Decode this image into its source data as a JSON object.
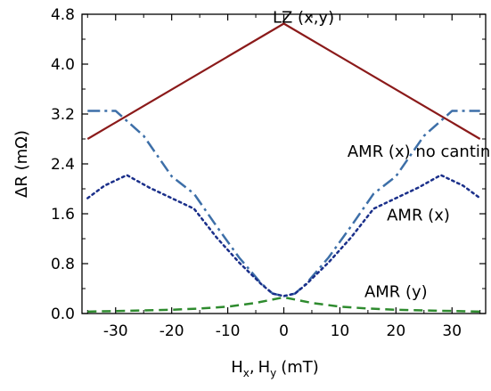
{
  "chart_data": {
    "type": "line",
    "title": "",
    "xlabel": "H_x, H_y (mT)",
    "xlabel_parts": {
      "h": "H",
      "x_sub": "x",
      "comma": ",",
      "y_sub": "y",
      "unit": "(mT)"
    },
    "ylabel": "ΔR (mΩ)",
    "xlim": [
      -36,
      36
    ],
    "ylim": [
      0,
      4.8
    ],
    "x_ticks": [
      -30,
      -20,
      -10,
      0,
      10,
      20,
      30
    ],
    "x_tick_labels": [
      "-30",
      "-20",
      "-10",
      "0",
      "10",
      "20",
      "30"
    ],
    "y_ticks": [
      0,
      0.8,
      1.6,
      2.4,
      3.2,
      4.0,
      4.8
    ],
    "y_tick_labels": [
      "0.0",
      "0.8",
      "1.6",
      "2.4",
      "3.2",
      "4.0",
      "4.8"
    ],
    "grid": false,
    "legend": "none (series labeled directly on plot)",
    "series": [
      {
        "name": "LZ (x,y)",
        "color": "#8b1a1a",
        "style": "solid",
        "x": [
          -35,
          0,
          35
        ],
        "y": [
          2.8,
          4.65,
          2.8
        ]
      },
      {
        "name": "AMR (x) no canting",
        "color": "#3d6fa8",
        "style": "dash-dot",
        "x": [
          -35,
          -30,
          -25,
          -20,
          -16,
          -12,
          -8,
          -4,
          -2,
          0,
          2,
          4,
          8,
          12,
          16,
          20,
          25,
          30,
          35
        ],
        "y": [
          3.25,
          3.25,
          2.85,
          2.2,
          1.92,
          1.4,
          0.9,
          0.48,
          0.32,
          0.28,
          0.32,
          0.48,
          0.9,
          1.4,
          1.92,
          2.2,
          2.85,
          3.25,
          3.25
        ]
      },
      {
        "name": "AMR (x)",
        "color": "#1a2f8a",
        "style": "dotted",
        "x": [
          -35,
          -32,
          -28,
          -24,
          -20,
          -16,
          -12,
          -8,
          -4,
          -2,
          0,
          2,
          4,
          8,
          12,
          16,
          20,
          24,
          28,
          32,
          35
        ],
        "y": [
          1.85,
          2.05,
          2.22,
          2.02,
          1.85,
          1.68,
          1.22,
          0.82,
          0.47,
          0.32,
          0.28,
          0.32,
          0.47,
          0.82,
          1.22,
          1.68,
          1.85,
          2.02,
          2.22,
          2.05,
          1.85
        ]
      },
      {
        "name": "AMR (y)",
        "color": "#2e8b2e",
        "style": "dashed",
        "x": [
          -35,
          -30,
          -25,
          -20,
          -15,
          -10,
          -5,
          0,
          5,
          10,
          15,
          20,
          25,
          30,
          35
        ],
        "y": [
          0.03,
          0.04,
          0.05,
          0.06,
          0.08,
          0.11,
          0.17,
          0.26,
          0.17,
          0.11,
          0.08,
          0.06,
          0.05,
          0.04,
          0.03
        ]
      }
    ],
    "annotations": [
      {
        "text": "LZ (x,y)",
        "x": 3.5,
        "y": 4.75
      },
      {
        "text": "AMR (x) no canting",
        "x": 25,
        "y": 2.6
      },
      {
        "text": "AMR (x)",
        "x": 24,
        "y": 1.58
      },
      {
        "text": "AMR (y)",
        "x": 20,
        "y": 0.35
      }
    ]
  }
}
